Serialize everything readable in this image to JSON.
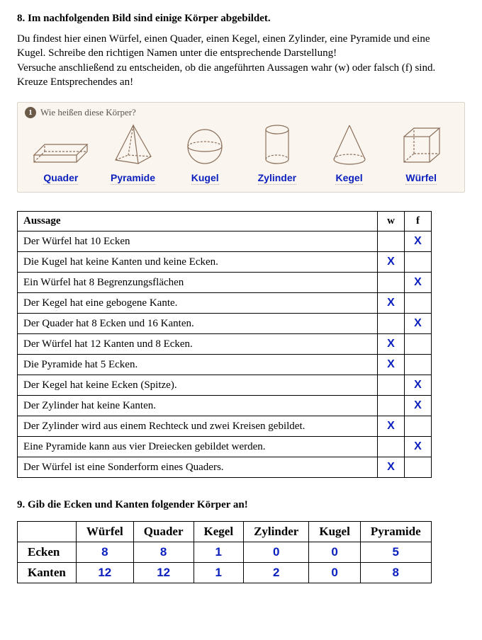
{
  "q8": {
    "title": "8. Im nachfolgenden Bild sind einige Körper abgebildet.",
    "intro_lines": [
      "Du findest hier einen Würfel, einen Quader, einen Kegel, einen Zylinder, eine Pyramide und eine",
      "Kugel. Schreibe den richtigen Namen unter die entsprechende Darstellung!",
      "Versuche anschließend zu entscheiden, ob die angeführten Aussagen wahr (w) oder falsch (f) sind.",
      "Kreuze Entsprechendes an!"
    ],
    "panel_badge": "1",
    "panel_question": "Wie heißen diese Körper?",
    "shapes": [
      {
        "name": "Quader"
      },
      {
        "name": "Pyramide"
      },
      {
        "name": "Kugel"
      },
      {
        "name": "Zylinder"
      },
      {
        "name": "Kegel"
      },
      {
        "name": "Würfel"
      }
    ],
    "table_headers": {
      "statement": "Aussage",
      "w": "w",
      "f": "f"
    },
    "statements": [
      {
        "text": "Der Würfel hat 10 Ecken",
        "w": "",
        "f": "X"
      },
      {
        "text": "Die Kugel hat keine Kanten und keine Ecken.",
        "w": "X",
        "f": ""
      },
      {
        "text": "Ein Würfel hat 8 Begrenzungsflächen",
        "w": "",
        "f": "X"
      },
      {
        "text": "Der Kegel hat eine gebogene Kante.",
        "w": "X",
        "f": ""
      },
      {
        "text": "Der Quader hat 8 Ecken und 16 Kanten.",
        "w": "",
        "f": "X"
      },
      {
        "text": "Der Würfel hat 12 Kanten und 8 Ecken.",
        "w": "X",
        "f": ""
      },
      {
        "text": "Die Pyramide hat 5 Ecken.",
        "w": "X",
        "f": ""
      },
      {
        "text": "Der Kegel hat keine Ecken (Spitze).",
        "w": "",
        "f": "X"
      },
      {
        "text": "Der Zylinder hat keine Kanten.",
        "w": "",
        "f": "X"
      },
      {
        "text": "Der Zylinder wird aus einem Rechteck und zwei Kreisen gebildet.",
        "w": "X",
        "f": ""
      },
      {
        "text": "Eine Pyramide kann aus vier Dreiecken gebildet werden.",
        "w": "",
        "f": "X"
      },
      {
        "text": "Der Würfel ist eine Sonderform eines Quaders.",
        "w": "X",
        "f": ""
      }
    ]
  },
  "q9": {
    "title": "9. Gib die Ecken und Kanten folgender Körper an!",
    "columns": [
      "Würfel",
      "Quader",
      "Kegel",
      "Zylinder",
      "Kugel",
      "Pyramide"
    ],
    "rows": [
      {
        "label": "Ecken",
        "values": [
          "8",
          "8",
          "1",
          "0",
          "0",
          "5"
        ]
      },
      {
        "label": "Kanten",
        "values": [
          "12",
          "12",
          "1",
          "2",
          "0",
          "8"
        ]
      }
    ]
  },
  "style": {
    "answer_color": "#0a1fbd",
    "panel_bg": "#faf5ef",
    "shape_stroke": "#8a6f5a"
  }
}
